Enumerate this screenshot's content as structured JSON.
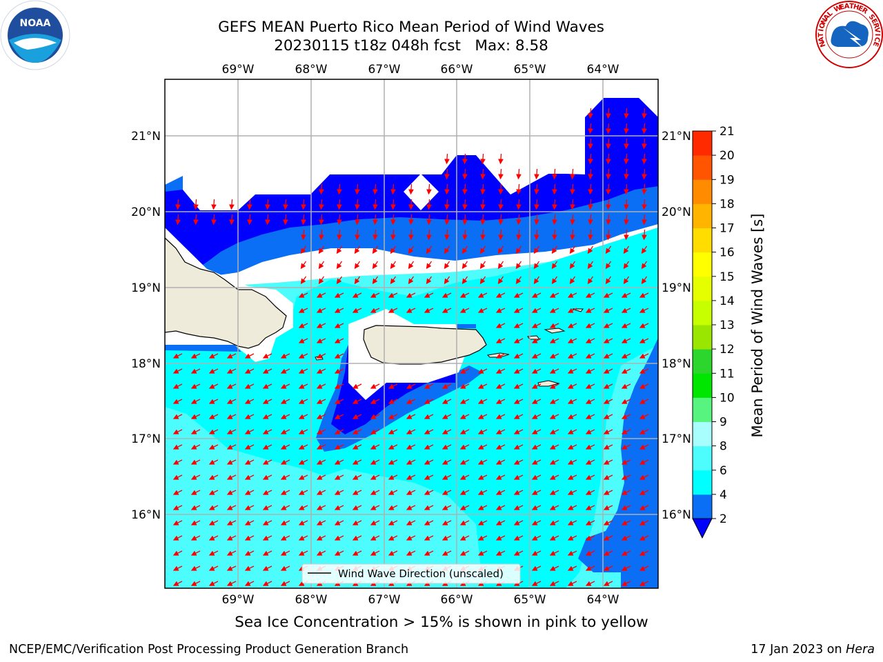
{
  "title": {
    "line1": "GEFS MEAN Puerto Rico Mean Period of Wind Waves",
    "line2": "20230115 t18z 048h fcst   Max: 8.58"
  },
  "map": {
    "lon_labels": [
      "69°W",
      "68°W",
      "67°W",
      "66°W",
      "65°W",
      "64°W"
    ],
    "lat_labels": [
      "21°N",
      "20°N",
      "19°N",
      "18°N",
      "17°N",
      "16°N"
    ],
    "legend_label": "Wind Wave Direction (unscaled)",
    "arrow_color": "#ff0000"
  },
  "colorbar": {
    "label": "Mean Period of Wind Waves [s]",
    "ticks": [
      "2",
      "4",
      "6",
      "8",
      "9",
      "10",
      "11",
      "12",
      "13",
      "14",
      "15",
      "16",
      "17",
      "18",
      "19",
      "20",
      "21"
    ],
    "colors": [
      "#0a6ff5",
      "#00ffff",
      "#4dfdfd",
      "#a8fdfd",
      "#57f57f",
      "#00e600",
      "#2cd62c",
      "#9be600",
      "#c8ff00",
      "#e6ff00",
      "#ffff00",
      "#ffdd00",
      "#ffb400",
      "#ff8c00",
      "#ff5500",
      "#ff2a00",
      "#ff0000"
    ],
    "under_color": "#0000ff"
  },
  "ice_note": "Sea Ice Concentration > 15% is shown in pink to yellow",
  "footer": {
    "left": "NCEP/EMC/Verification Post Processing Product Generation Branch",
    "right_prefix": "17 Jan 2023 on ",
    "right_machine": "Hera"
  },
  "logos": {
    "noaa": "NOAA",
    "nws": "NATIONAL WEATHER SERVICE"
  }
}
